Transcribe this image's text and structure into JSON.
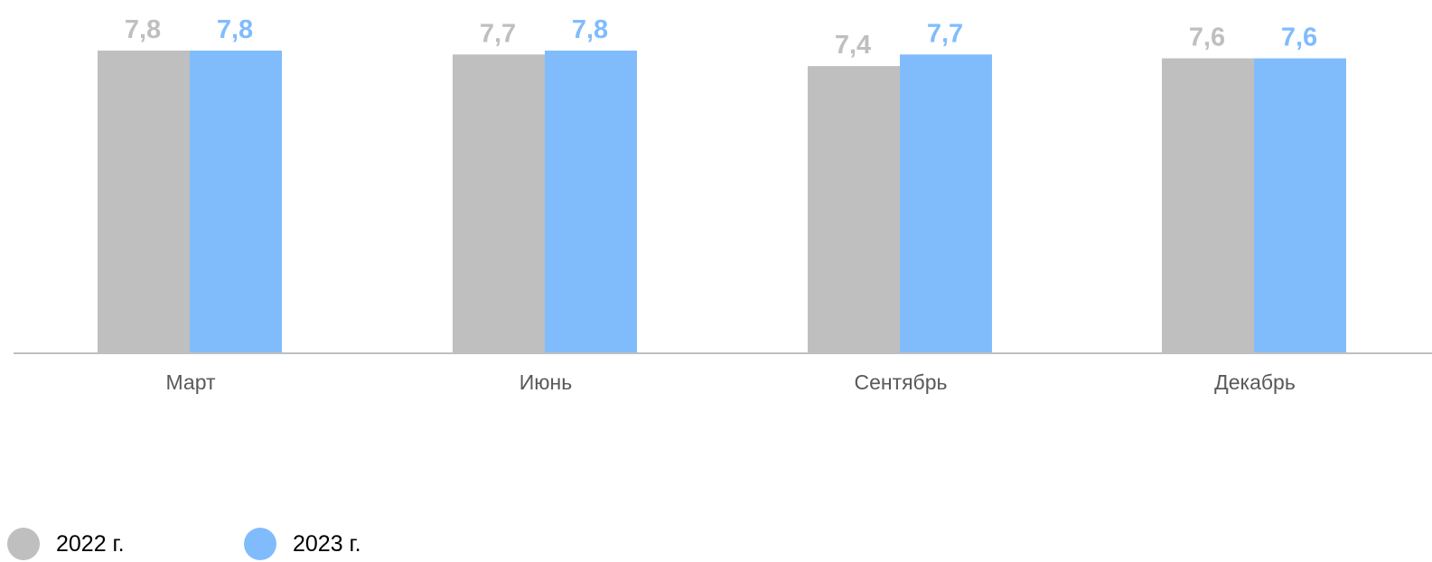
{
  "chart_data": {
    "type": "bar",
    "categories": [
      "Март",
      "Июнь",
      "Сентябрь",
      "Декабрь"
    ],
    "series": [
      {
        "name": "2022 г.",
        "values": [
          7.8,
          7.7,
          7.4,
          7.6
        ],
        "labels": [
          "7,8",
          "7,7",
          "7,4",
          "7,6"
        ],
        "color": "#bfbfbf",
        "label_color": "#bfbfbf"
      },
      {
        "name": "2023 г.",
        "values": [
          7.8,
          7.8,
          7.7,
          7.6
        ],
        "labels": [
          "7,8",
          "7,8",
          "7,7",
          "7,6"
        ],
        "color": "#80bcfc",
        "label_color": "#80bcfc"
      }
    ],
    "title": "",
    "xlabel": "",
    "ylabel": "",
    "ylim": [
      0,
      7.8
    ],
    "grid": false,
    "legend_position": "bottom-left",
    "axis_color": "#bfbfbf"
  }
}
